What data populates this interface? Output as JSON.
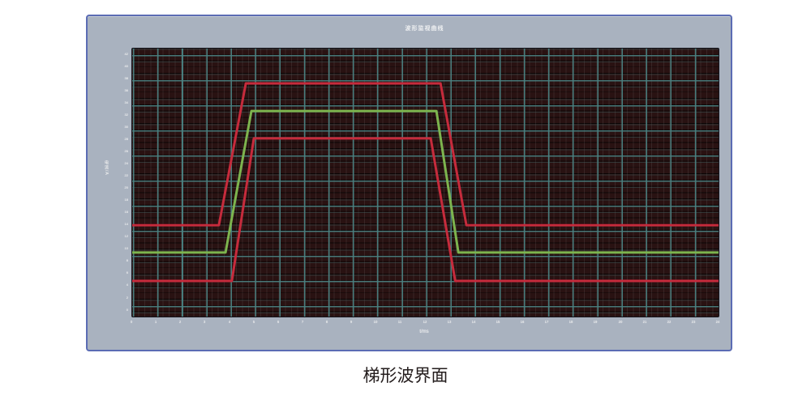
{
  "caption": "梯形波界面",
  "colors": {
    "panel_background": "#a9b2bf",
    "panel_border": "#5b6cb4",
    "plot_background": "#1a0c0c",
    "grid_major": "#4a8282",
    "grid_band": "#291212",
    "wave_red": "#c62b3c",
    "wave_green": "#7db44e",
    "tick_text": "#f2f2f2",
    "caption_text": "#231c1c"
  },
  "chart_data": {
    "type": "line",
    "title": "波形监视曲线",
    "xlabel": "t/ms",
    "ylabel": "电流/A",
    "xlim": [
      0,
      24
    ],
    "ylim": [
      0,
      100
    ],
    "grid": "on",
    "legend": "none",
    "x_ticks": [
      "0",
      "1",
      "2",
      "3",
      "4",
      "5",
      "6",
      "7",
      "8",
      "9",
      "10",
      "11",
      "12",
      "13",
      "14",
      "15",
      "16",
      "17",
      "18",
      "19",
      "20",
      "21",
      "22",
      "23",
      "24"
    ],
    "y_ticks": [
      "42",
      "40",
      "38",
      "36",
      "34",
      "32",
      "30",
      "28",
      "26",
      "24",
      "22",
      "20",
      "18",
      "16",
      "14",
      "12",
      "10",
      "8",
      "6",
      "4",
      "2",
      "0"
    ],
    "series": [
      {
        "name": "red-upper-trapezoid",
        "color": "#c62b3c",
        "points": [
          [
            0,
            34.1
          ],
          [
            3.55,
            34.1
          ],
          [
            4.65,
            87.0
          ],
          [
            12.62,
            87.0
          ],
          [
            13.68,
            34.1
          ],
          [
            24,
            34.1
          ]
        ]
      },
      {
        "name": "green-middle-trapezoid",
        "color": "#7db44e",
        "points": [
          [
            0,
            23.9
          ],
          [
            3.82,
            23.9
          ],
          [
            4.88,
            76.7
          ],
          [
            12.45,
            76.7
          ],
          [
            13.35,
            23.9
          ],
          [
            24,
            23.9
          ]
        ]
      },
      {
        "name": "red-lower-trapezoid",
        "color": "#c62b3c",
        "points": [
          [
            0,
            13.3
          ],
          [
            4.08,
            13.3
          ],
          [
            4.98,
            66.5
          ],
          [
            12.22,
            66.5
          ],
          [
            13.22,
            13.3
          ],
          [
            24,
            13.3
          ]
        ]
      }
    ]
  }
}
